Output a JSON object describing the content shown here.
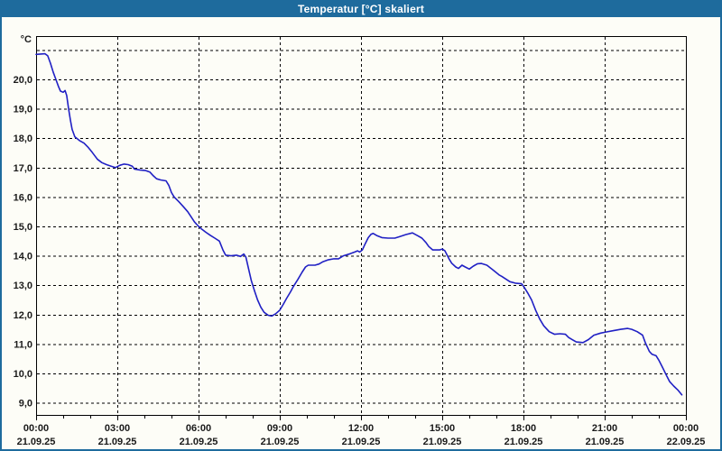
{
  "window": {
    "title": "Temperatur [°C] skaliert"
  },
  "colors": {
    "titlebar_bg": "#1e6b9d",
    "window_border": "#1e6b9d",
    "background": "#fdfdf7",
    "grid": "#000000",
    "axis_text": "#1a1a1a",
    "line": "#2020c4"
  },
  "chart_data": {
    "type": "line",
    "title": "Temperatur [°C] skaliert",
    "grid": "dashed",
    "legend": "none",
    "y_axis": {
      "unit": "°C",
      "min": 9.0,
      "max": 21.0,
      "tick_step": 1.0,
      "gridline_max": 21,
      "top_gridline_unlabeled": true,
      "decimal_separator": ",",
      "tick_labels": [
        {
          "value": 20,
          "label": "20,0"
        },
        {
          "value": 19,
          "label": "19,0"
        },
        {
          "value": 18,
          "label": "18,0"
        },
        {
          "value": 17,
          "label": "17,0"
        },
        {
          "value": 16,
          "label": "16,0"
        },
        {
          "value": 15,
          "label": "15,0"
        },
        {
          "value": 14,
          "label": "14,0"
        },
        {
          "value": 13,
          "label": "13,0"
        },
        {
          "value": 12,
          "label": "12,0"
        },
        {
          "value": 11,
          "label": "11,0"
        },
        {
          "value": 10,
          "label": "10,0"
        },
        {
          "value": 9,
          "label": "9,0"
        }
      ]
    },
    "x_axis": {
      "span_hours": 24,
      "minor_tick_hours": 1,
      "major_tick_hours": 3,
      "ticks": [
        {
          "hour": 0,
          "time": "00:00",
          "date": "21.09.25"
        },
        {
          "hour": 3,
          "time": "03:00",
          "date": "21.09.25"
        },
        {
          "hour": 6,
          "time": "06:00",
          "date": "21.09.25"
        },
        {
          "hour": 9,
          "time": "09:00",
          "date": "21.09.25"
        },
        {
          "hour": 12,
          "time": "12:00",
          "date": "21.09.25"
        },
        {
          "hour": 15,
          "time": "15:00",
          "date": "21.09.25"
        },
        {
          "hour": 18,
          "time": "18:00",
          "date": "21.09.25"
        },
        {
          "hour": 21,
          "time": "21:00",
          "date": "21.09.25"
        },
        {
          "hour": 24,
          "time": "00:00",
          "date": "22.09.25"
        }
      ]
    },
    "series": [
      {
        "name": "Temperatur",
        "unit": "°C",
        "color": "#2020c4",
        "points_hours_degC": [
          [
            0.0,
            20.85
          ],
          [
            0.33,
            20.87
          ],
          [
            0.43,
            20.8
          ],
          [
            0.53,
            20.55
          ],
          [
            0.63,
            20.25
          ],
          [
            0.73,
            20.0
          ],
          [
            0.83,
            19.75
          ],
          [
            0.9,
            19.6
          ],
          [
            1.0,
            19.56
          ],
          [
            1.07,
            19.62
          ],
          [
            1.13,
            19.45
          ],
          [
            1.2,
            19.0
          ],
          [
            1.27,
            18.6
          ],
          [
            1.33,
            18.3
          ],
          [
            1.43,
            18.05
          ],
          [
            1.6,
            17.92
          ],
          [
            1.77,
            17.83
          ],
          [
            1.93,
            17.68
          ],
          [
            2.07,
            17.52
          ],
          [
            2.17,
            17.4
          ],
          [
            2.27,
            17.28
          ],
          [
            2.43,
            17.17
          ],
          [
            2.6,
            17.1
          ],
          [
            2.77,
            17.05
          ],
          [
            2.93,
            17.0
          ],
          [
            3.1,
            17.08
          ],
          [
            3.25,
            17.12
          ],
          [
            3.4,
            17.1
          ],
          [
            3.55,
            17.05
          ],
          [
            3.63,
            16.95
          ],
          [
            3.83,
            16.92
          ],
          [
            4.05,
            16.9
          ],
          [
            4.2,
            16.85
          ],
          [
            4.33,
            16.72
          ],
          [
            4.45,
            16.62
          ],
          [
            4.6,
            16.58
          ],
          [
            4.8,
            16.55
          ],
          [
            4.9,
            16.4
          ],
          [
            5.0,
            16.15
          ],
          [
            5.1,
            16.0
          ],
          [
            5.27,
            15.84
          ],
          [
            5.43,
            15.68
          ],
          [
            5.6,
            15.5
          ],
          [
            5.73,
            15.32
          ],
          [
            5.85,
            15.15
          ],
          [
            6.0,
            15.0
          ],
          [
            6.1,
            14.92
          ],
          [
            6.27,
            14.8
          ],
          [
            6.43,
            14.7
          ],
          [
            6.6,
            14.6
          ],
          [
            6.77,
            14.5
          ],
          [
            6.9,
            14.2
          ],
          [
            7.0,
            14.02
          ],
          [
            7.2,
            14.0
          ],
          [
            7.4,
            14.02
          ],
          [
            7.55,
            13.98
          ],
          [
            7.67,
            14.06
          ],
          [
            7.75,
            13.95
          ],
          [
            7.85,
            13.55
          ],
          [
            7.95,
            13.15
          ],
          [
            8.07,
            12.8
          ],
          [
            8.18,
            12.5
          ],
          [
            8.3,
            12.25
          ],
          [
            8.42,
            12.08
          ],
          [
            8.57,
            11.98
          ],
          [
            8.7,
            11.95
          ],
          [
            8.85,
            12.03
          ],
          [
            9.0,
            12.15
          ],
          [
            9.13,
            12.35
          ],
          [
            9.25,
            12.55
          ],
          [
            9.4,
            12.78
          ],
          [
            9.5,
            12.95
          ],
          [
            9.67,
            13.2
          ],
          [
            9.83,
            13.45
          ],
          [
            9.95,
            13.62
          ],
          [
            10.05,
            13.68
          ],
          [
            10.3,
            13.68
          ],
          [
            10.45,
            13.72
          ],
          [
            10.6,
            13.8
          ],
          [
            10.77,
            13.86
          ],
          [
            11.0,
            13.9
          ],
          [
            11.17,
            13.9
          ],
          [
            11.35,
            14.0
          ],
          [
            11.6,
            14.07
          ],
          [
            11.77,
            14.13
          ],
          [
            11.87,
            14.17
          ],
          [
            11.95,
            14.13
          ],
          [
            12.05,
            14.2
          ],
          [
            12.15,
            14.4
          ],
          [
            12.27,
            14.62
          ],
          [
            12.37,
            14.73
          ],
          [
            12.45,
            14.76
          ],
          [
            12.6,
            14.68
          ],
          [
            12.77,
            14.62
          ],
          [
            13.0,
            14.6
          ],
          [
            13.25,
            14.6
          ],
          [
            13.45,
            14.66
          ],
          [
            13.65,
            14.72
          ],
          [
            13.9,
            14.78
          ],
          [
            14.1,
            14.68
          ],
          [
            14.25,
            14.6
          ],
          [
            14.4,
            14.45
          ],
          [
            14.5,
            14.32
          ],
          [
            14.65,
            14.2
          ],
          [
            14.9,
            14.2
          ],
          [
            15.0,
            14.23
          ],
          [
            15.1,
            14.17
          ],
          [
            15.25,
            13.9
          ],
          [
            15.35,
            13.75
          ],
          [
            15.5,
            13.62
          ],
          [
            15.6,
            13.57
          ],
          [
            15.73,
            13.68
          ],
          [
            15.85,
            13.62
          ],
          [
            16.0,
            13.55
          ],
          [
            16.15,
            13.65
          ],
          [
            16.3,
            13.73
          ],
          [
            16.45,
            13.74
          ],
          [
            16.65,
            13.68
          ],
          [
            16.9,
            13.5
          ],
          [
            17.1,
            13.35
          ],
          [
            17.2,
            13.3
          ],
          [
            17.5,
            13.12
          ],
          [
            17.7,
            13.07
          ],
          [
            17.93,
            13.05
          ],
          [
            18.0,
            12.97
          ],
          [
            18.15,
            12.75
          ],
          [
            18.3,
            12.5
          ],
          [
            18.45,
            12.15
          ],
          [
            18.6,
            11.85
          ],
          [
            18.75,
            11.62
          ],
          [
            18.95,
            11.42
          ],
          [
            19.15,
            11.33
          ],
          [
            19.35,
            11.35
          ],
          [
            19.55,
            11.33
          ],
          [
            19.67,
            11.22
          ],
          [
            19.95,
            11.07
          ],
          [
            20.2,
            11.05
          ],
          [
            20.4,
            11.15
          ],
          [
            20.6,
            11.3
          ],
          [
            20.85,
            11.37
          ],
          [
            21.0,
            11.4
          ],
          [
            21.3,
            11.45
          ],
          [
            21.6,
            11.5
          ],
          [
            21.85,
            11.53
          ],
          [
            22.0,
            11.5
          ],
          [
            22.2,
            11.42
          ],
          [
            22.4,
            11.3
          ],
          [
            22.5,
            11.05
          ],
          [
            22.65,
            10.75
          ],
          [
            22.75,
            10.65
          ],
          [
            22.9,
            10.6
          ],
          [
            23.0,
            10.45
          ],
          [
            23.15,
            10.18
          ],
          [
            23.3,
            9.9
          ],
          [
            23.4,
            9.72
          ],
          [
            23.55,
            9.57
          ],
          [
            23.7,
            9.44
          ],
          [
            23.85,
            9.27
          ]
        ]
      }
    ]
  }
}
